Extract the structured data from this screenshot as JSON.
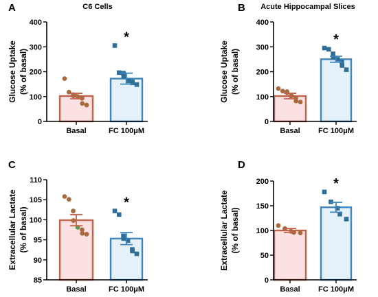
{
  "colors": {
    "basal_stroke": "#c0634c",
    "basal_fill": "#fbe1e1",
    "basal_point": "#a86a3e",
    "fc_stroke": "#3f86bd",
    "fc_fill": "#e4f1fa",
    "fc_point": "#2f6f97",
    "green_point": "#5e9b52",
    "axis": "#000000"
  },
  "chart_data": [
    {
      "panel": "A",
      "type": "bar",
      "title": "C6 Cells",
      "ylabel": [
        "Glucose Uptake",
        "(% of basal)"
      ],
      "ylim": [
        0,
        400
      ],
      "yticks": [
        0,
        100,
        200,
        300,
        400
      ],
      "categories": [
        "Basal",
        "FC 100μM"
      ],
      "values": [
        102,
        172
      ],
      "errors": [
        11,
        22
      ],
      "points": [
        [
          172,
          118,
          108,
          103,
          100,
          93,
          72,
          66
        ],
        [
          305,
          196,
          194,
          180,
          163,
          160,
          155,
          148
        ]
      ],
      "significance": [
        "",
        "*"
      ]
    },
    {
      "panel": "B",
      "type": "bar",
      "title": "Acute Hippocampal Slices",
      "ylabel": [
        "Glucose Uptake",
        "(% of basal)"
      ],
      "ylim": [
        0,
        400
      ],
      "yticks": [
        0,
        100,
        200,
        300,
        400
      ],
      "categories": [
        "Basal",
        "FC 100μM"
      ],
      "values": [
        102,
        250
      ],
      "errors": [
        11,
        12
      ],
      "points": [
        [
          132,
          122,
          120,
          115,
          103,
          95,
          82,
          78
        ],
        [
          295,
          290,
          272,
          258,
          250,
          238,
          225,
          208
        ]
      ],
      "significance": [
        "",
        "*"
      ]
    },
    {
      "panel": "C",
      "type": "bar",
      "title": "",
      "ylabel": [
        "Extracellular Lactate",
        "(% of basal)"
      ],
      "ylim": [
        85,
        110
      ],
      "yticks": [
        85,
        90,
        95,
        100,
        105,
        110
      ],
      "categories": [
        "Basal",
        "FC 100μM"
      ],
      "values": [
        99.9,
        95.3
      ],
      "errors": [
        1.4,
        1.5
      ],
      "points": [
        [
          105.8,
          105.1,
          102.2,
          99.8,
          98.1,
          97.5,
          96.6,
          96.4
        ],
        [
          102.2,
          101.3,
          96.0,
          95.3,
          94.8,
          92.6,
          92.2,
          91.5
        ]
      ],
      "significance": [
        "",
        "*"
      ]
    },
    {
      "panel": "D",
      "type": "bar",
      "title": "",
      "ylabel": [
        "Extracellular Lactate",
        "(% of basal)"
      ],
      "ylim": [
        0,
        200
      ],
      "yticks": [
        0,
        50,
        100,
        150,
        200
      ],
      "categories": [
        "Basal",
        "FC 100μM"
      ],
      "values": [
        100,
        147
      ],
      "errors": [
        4,
        10
      ],
      "points": [
        [
          110,
          104,
          98,
          96,
          95
        ],
        [
          178,
          158,
          145,
          133,
          123
        ]
      ],
      "significance": [
        "",
        "*"
      ]
    }
  ]
}
